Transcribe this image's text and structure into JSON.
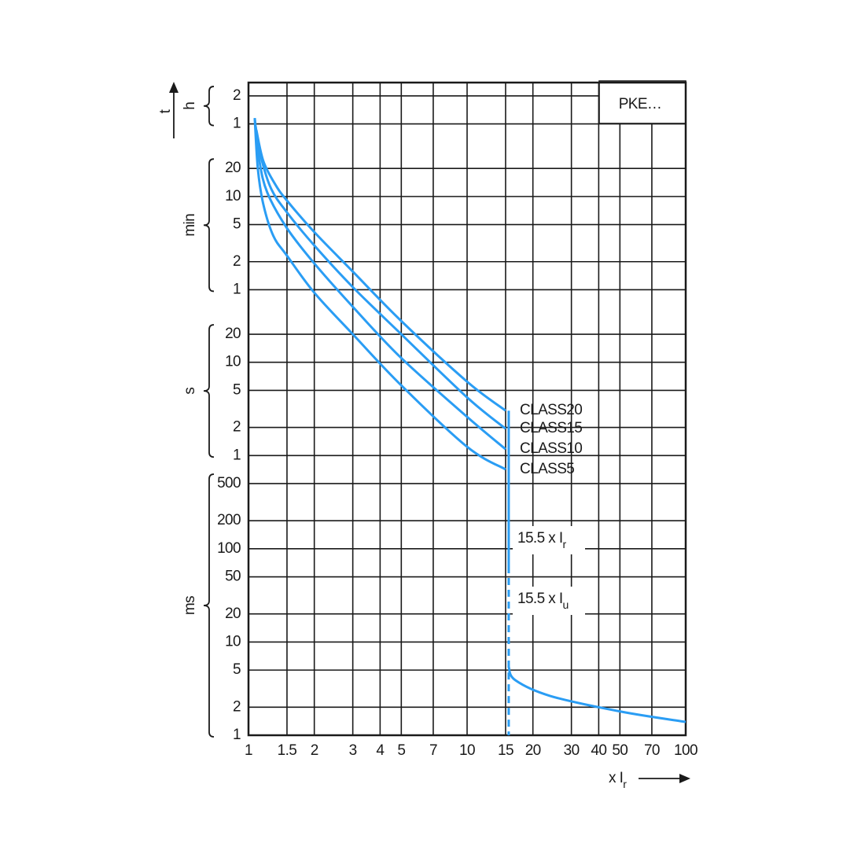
{
  "chart_data": {
    "type": "line",
    "legend_box": "PKE…",
    "ylabel": "t",
    "xlabel": {
      "text": "x I",
      "sub": "r"
    },
    "xscale": "log",
    "yscale": "log",
    "xlim": [
      1,
      100
    ],
    "ylim": [
      0.001,
      10000
    ],
    "xticks": [
      1,
      1.5,
      2,
      3,
      4,
      5,
      7,
      10,
      15,
      20,
      30,
      40,
      50,
      70,
      100
    ],
    "ytick_groups": [
      {
        "label": "ms",
        "ticks": [
          {
            "value": 0.001,
            "label": "1"
          },
          {
            "value": 0.002,
            "label": "2"
          },
          {
            "value": 0.005,
            "label": "5"
          },
          {
            "value": 0.01,
            "label": "10"
          },
          {
            "value": 0.02,
            "label": "20"
          },
          {
            "value": 0.05,
            "label": "50"
          },
          {
            "value": 0.1,
            "label": "100"
          },
          {
            "value": 0.2,
            "label": "200"
          },
          {
            "value": 0.5,
            "label": "500"
          }
        ]
      },
      {
        "label": "s",
        "ticks": [
          1,
          2,
          5,
          10,
          20
        ]
      },
      {
        "label": "min",
        "ticks": [
          {
            "value": 60,
            "label": "1"
          },
          {
            "value": 120,
            "label": "2"
          },
          {
            "value": 300,
            "label": "5"
          },
          {
            "value": 600,
            "label": "10"
          },
          {
            "value": 1200,
            "label": "20"
          }
        ]
      },
      {
        "label": "h",
        "ticks": [
          {
            "value": 3600,
            "label": "1"
          },
          {
            "value": 7200,
            "label": "2"
          }
        ]
      }
    ],
    "grid": true,
    "color": "#2a9df4",
    "series": [
      {
        "name": "CLASS5",
        "x": [
          1.068,
          1.104,
          1.17,
          1.3,
          1.5,
          2,
          3,
          5,
          10,
          15
        ],
        "y": [
          4160,
          1178,
          491,
          226,
          139,
          55.8,
          20,
          5.65,
          1.24,
          0.71
        ]
      },
      {
        "name": "CLASS10",
        "x": [
          1.068,
          1.123,
          1.22,
          1.5,
          2,
          3,
          5,
          10,
          15
        ],
        "y": [
          4160,
          1430,
          658,
          274,
          115,
          39.4,
          11.1,
          2.6,
          1.17
        ]
      },
      {
        "name": "CLASS15",
        "x": [
          1.077,
          1.142,
          1.27,
          1.5,
          2,
          3,
          5,
          10,
          15
        ],
        "y": [
          3430,
          1575,
          725,
          405,
          179,
          64,
          20,
          4.2,
          1.94
        ]
      },
      {
        "name": "CLASS20",
        "x": [
          1.086,
          1.17,
          1.33,
          1.5,
          2,
          3,
          5,
          10,
          15
        ],
        "y": [
          3105,
          1430,
          798,
          542,
          249,
          94,
          27.7,
          6.2,
          3.03
        ]
      }
    ],
    "trip_lines": [
      {
        "x": [
          15.5,
          15.5
        ],
        "y": [
          3.03,
          0.065
        ],
        "dashed": false
      },
      {
        "x": [
          15.5,
          15.5
        ],
        "y": [
          0.065,
          0.001
        ],
        "dashed": true
      }
    ],
    "instantaneous": {
      "x": [
        15.5,
        16.6,
        24,
        50.7,
        100
      ],
      "y": [
        0.0054,
        0.0039,
        0.00264,
        0.00179,
        0.00139
      ]
    },
    "annotations": [
      {
        "text": "15.5 x I",
        "sub": "r"
      },
      {
        "text": "15.5 x I",
        "sub": "u"
      }
    ]
  }
}
